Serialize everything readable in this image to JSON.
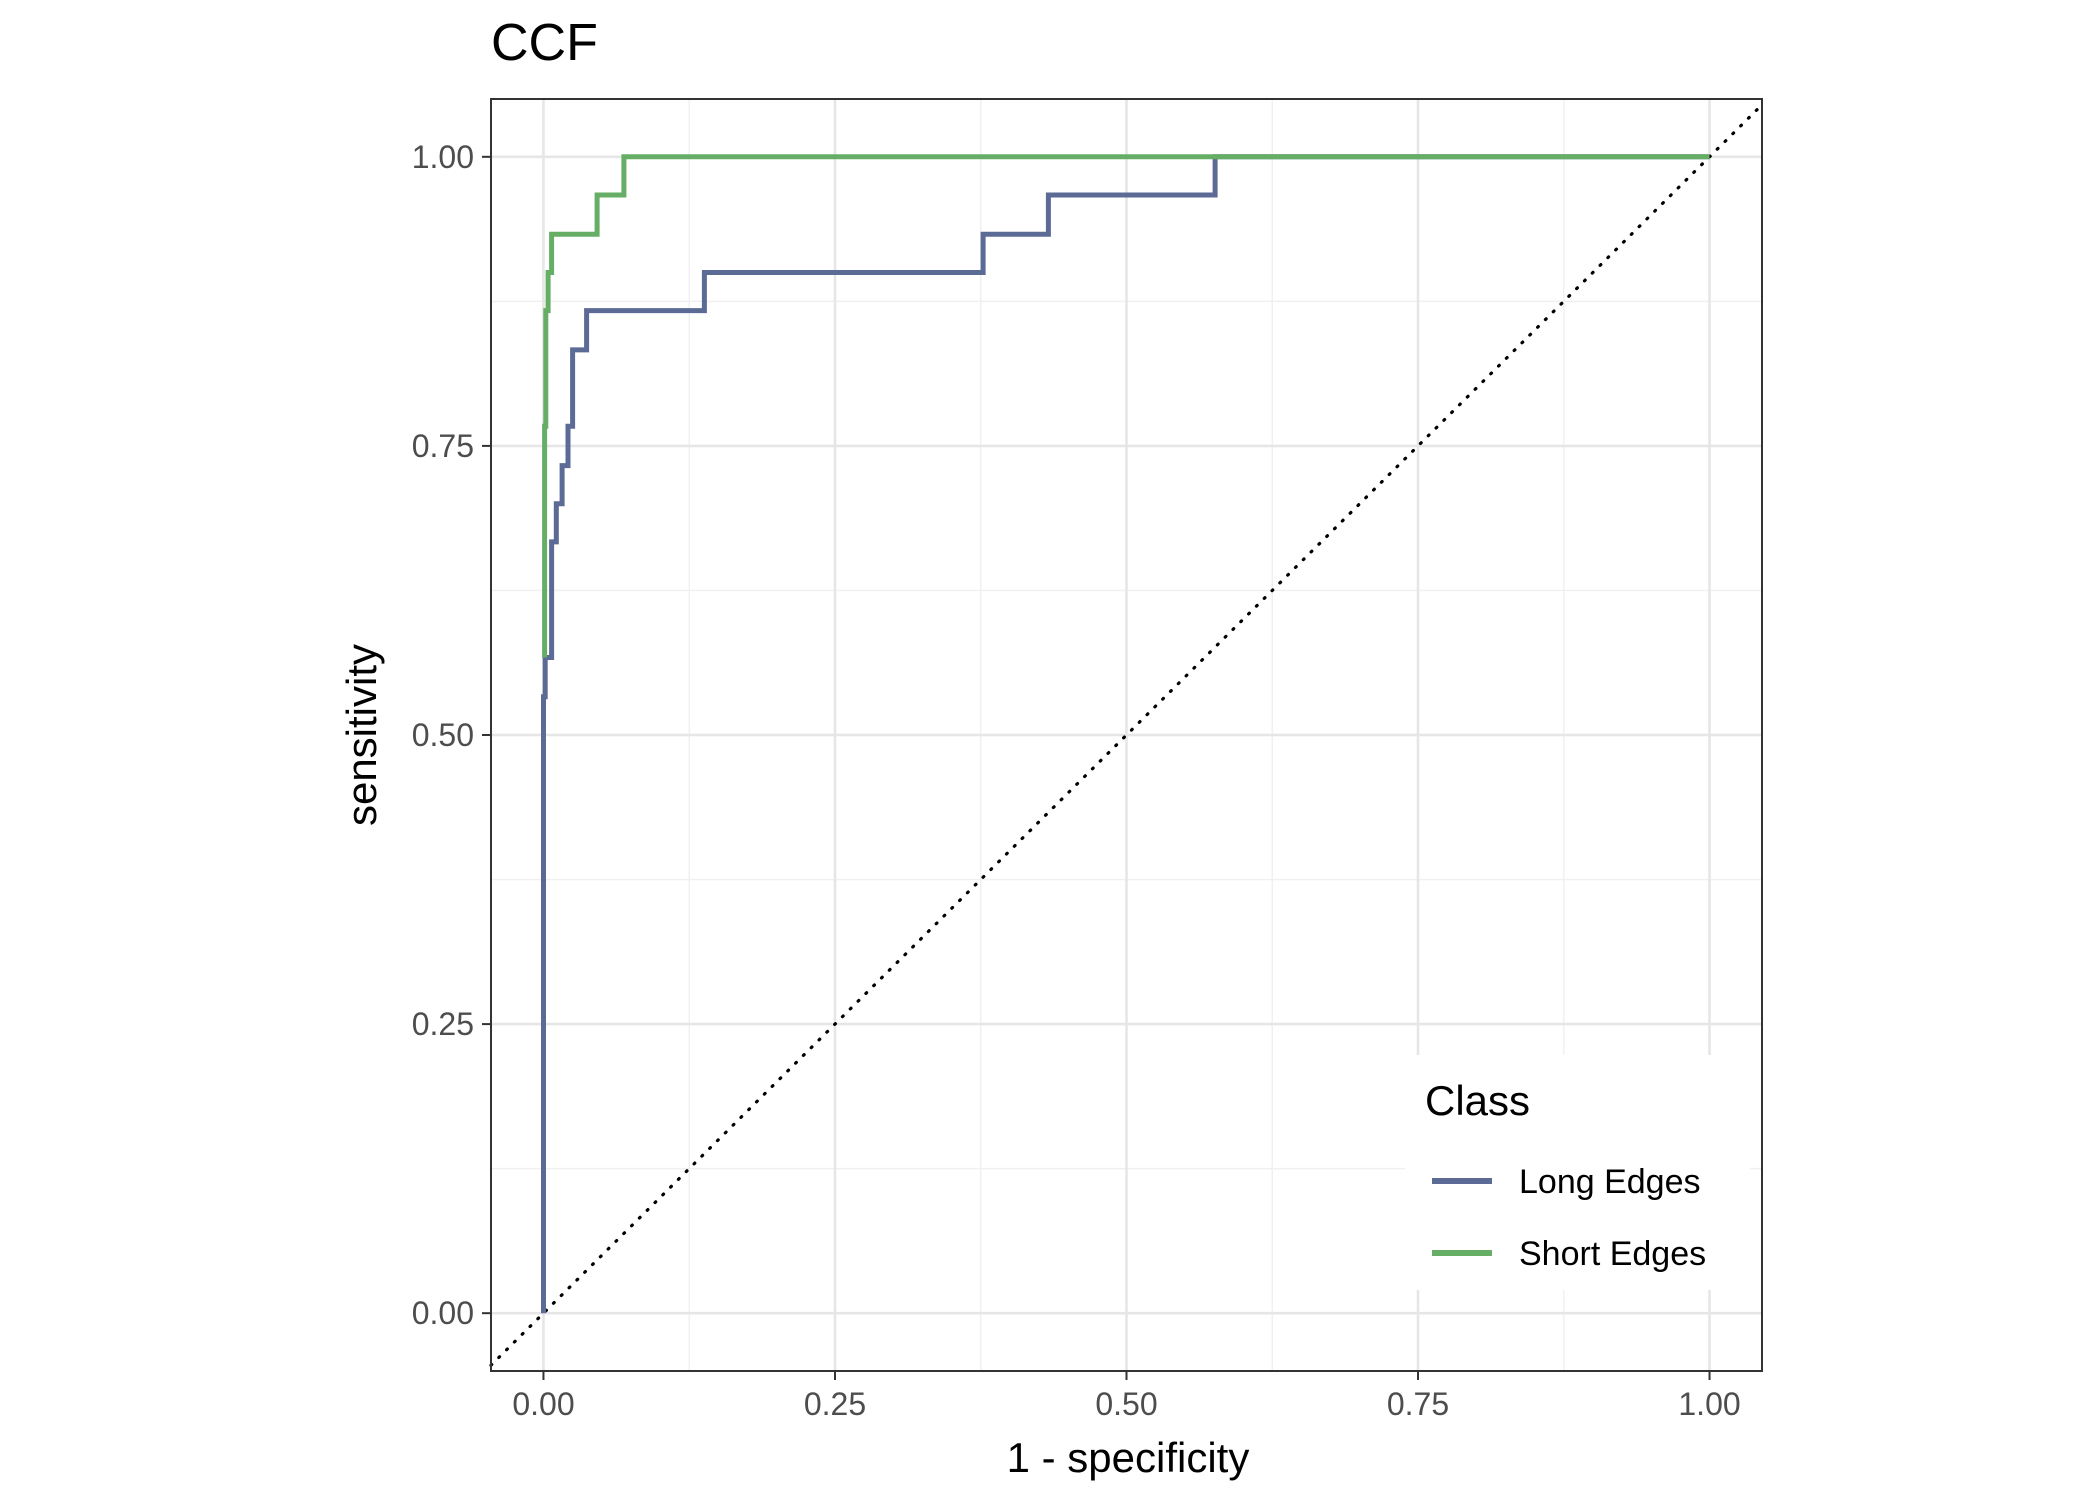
{
  "chart_data": {
    "type": "line",
    "title": "CCF",
    "xlabel": "1 - specificity",
    "ylabel": "sensitivity",
    "xlim": [
      -0.045,
      1.045
    ],
    "ylim": [
      -0.05,
      1.05
    ],
    "x_ticks": [
      0,
      0.25,
      0.5,
      0.75,
      1
    ],
    "x_tick_labels": [
      "0.00",
      "0.25",
      "0.50",
      "0.75",
      "1.00"
    ],
    "y_ticks": [
      0,
      0.25,
      0.5,
      0.75,
      1
    ],
    "y_tick_labels": [
      "0.00",
      "0.25",
      "0.50",
      "0.75",
      "1.00"
    ],
    "grid": true,
    "reference_line": {
      "type": "diagonal",
      "style": "dotted",
      "color": "#000000"
    },
    "legend": {
      "title": "Class",
      "position": "bottom-right"
    },
    "series": [
      {
        "name": "Long Edges",
        "color": "#5b6b95",
        "x": [
          0,
          0,
          0.0015,
          0.0015,
          0.007,
          0.007,
          0.011,
          0.011,
          0.016,
          0.016,
          0.021,
          0.021,
          0.025,
          0.025,
          0.037,
          0.037,
          0.138,
          0.138,
          0.377,
          0.377,
          0.433,
          0.433,
          0.576,
          0.576,
          1.0
        ],
        "y": [
          0,
          0.533,
          0.533,
          0.567,
          0.567,
          0.667,
          0.667,
          0.7,
          0.7,
          0.733,
          0.733,
          0.767,
          0.767,
          0.833,
          0.833,
          0.867,
          0.867,
          0.9,
          0.9,
          0.933,
          0.933,
          0.967,
          0.967,
          1.0,
          1.0
        ]
      },
      {
        "name": "Short Edges",
        "color": "#66ad66",
        "x": [
          0.001,
          0.001,
          0.002,
          0.002,
          0.004,
          0.004,
          0.007,
          0.007,
          0.046,
          0.046,
          0.069,
          0.069,
          1.0
        ],
        "y": [
          0.567,
          0.767,
          0.767,
          0.867,
          0.867,
          0.9,
          0.9,
          0.933,
          0.933,
          0.967,
          0.967,
          1.0,
          1.0
        ]
      }
    ]
  }
}
